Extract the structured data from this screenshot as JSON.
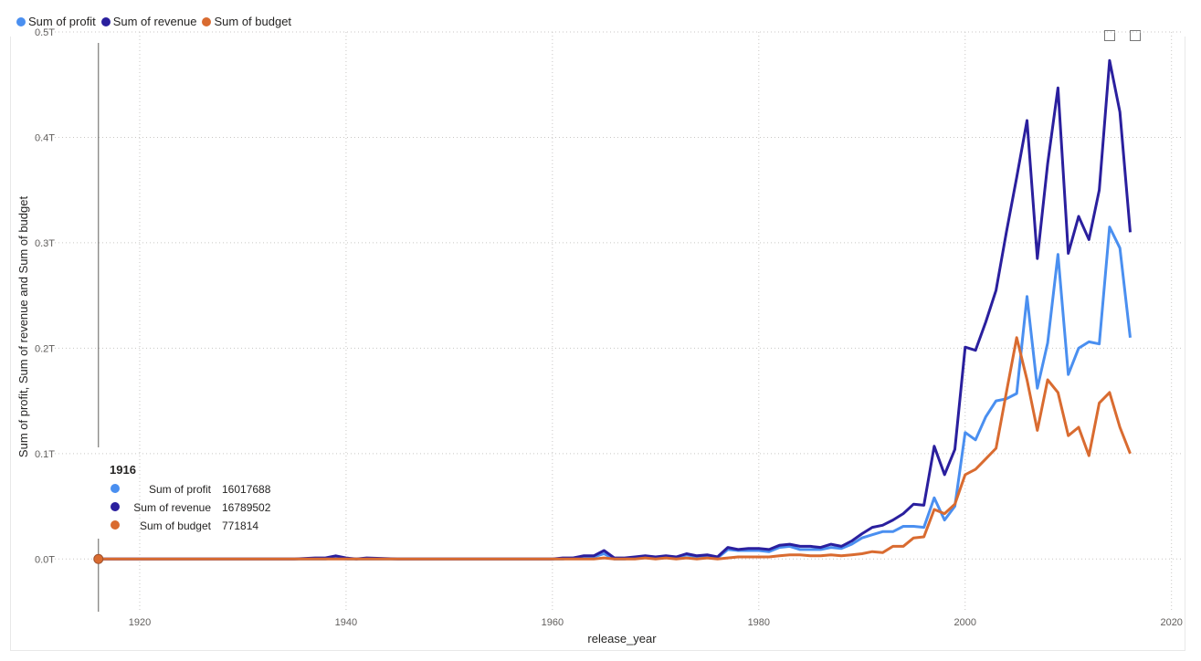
{
  "chart_data": {
    "type": "line",
    "title": "",
    "xlabel": "release_year",
    "ylabel": "Sum of profit, Sum of revenue and Sum of budget",
    "xlim": [
      1910,
      2021
    ],
    "ylim": [
      -0.05,
      0.5
    ],
    "x_ticks": [
      1920,
      1940,
      1960,
      1980,
      2000,
      2020
    ],
    "y_ticks": [
      {
        "value": 0,
        "label": "0.0T"
      },
      {
        "value": 0.1,
        "label": "0.1T"
      },
      {
        "value": 0.2,
        "label": "0.2T"
      },
      {
        "value": 0.3,
        "label": "0.3T"
      },
      {
        "value": 0.4,
        "label": "0.4T"
      },
      {
        "value": 0.5,
        "label": "0.5T"
      }
    ],
    "y_unit": "T",
    "grid": true,
    "legend_position": "top-left",
    "x": [
      1916,
      1920,
      1925,
      1930,
      1935,
      1937,
      1938,
      1939,
      1940,
      1941,
      1942,
      1945,
      1950,
      1955,
      1960,
      1961,
      1962,
      1963,
      1964,
      1965,
      1966,
      1967,
      1968,
      1969,
      1970,
      1971,
      1972,
      1973,
      1974,
      1975,
      1976,
      1977,
      1978,
      1979,
      1980,
      1981,
      1982,
      1983,
      1984,
      1985,
      1986,
      1987,
      1988,
      1989,
      1990,
      1991,
      1992,
      1993,
      1994,
      1995,
      1996,
      1997,
      1998,
      1999,
      2000,
      2001,
      2002,
      2003,
      2004,
      2005,
      2006,
      2007,
      2008,
      2009,
      2010,
      2011,
      2012,
      2013,
      2014,
      2015,
      2016
    ],
    "series": [
      {
        "name": "Sum of profit",
        "color": "#4a8ff0",
        "values": [
          0,
          0,
          0,
          0,
          0,
          0,
          0,
          0.001,
          0,
          0,
          0,
          0,
          0,
          0,
          0,
          0,
          0.001,
          0.002,
          0.002,
          0.005,
          0,
          0,
          0.001,
          0.002,
          0.001,
          0.002,
          0.001,
          0.004,
          0.002,
          0.003,
          0.001,
          0.009,
          0.008,
          0.008,
          0.008,
          0.007,
          0.011,
          0.012,
          0.009,
          0.009,
          0.009,
          0.011,
          0.01,
          0.014,
          0.02,
          0.023,
          0.026,
          0.026,
          0.031,
          0.031,
          0.03,
          0.058,
          0.037,
          0.05,
          0.12,
          0.113,
          0.135,
          0.15,
          0.152,
          0.157,
          0.249,
          0.162,
          0.205,
          0.289,
          0.175,
          0.2,
          0.206,
          0.204,
          0.315,
          0.295,
          0.21
        ]
      },
      {
        "name": "Sum of revenue",
        "color": "#2a1f9e",
        "values": [
          0,
          0,
          0,
          0,
          0,
          0.001,
          0.001,
          0.003,
          0.001,
          0,
          0.001,
          0,
          0,
          0,
          0,
          0.001,
          0.001,
          0.003,
          0.003,
          0.008,
          0.001,
          0.001,
          0.002,
          0.003,
          0.002,
          0.003,
          0.002,
          0.005,
          0.003,
          0.004,
          0.002,
          0.011,
          0.009,
          0.01,
          0.01,
          0.009,
          0.013,
          0.014,
          0.012,
          0.012,
          0.011,
          0.014,
          0.012,
          0.017,
          0.024,
          0.03,
          0.032,
          0.037,
          0.043,
          0.052,
          0.051,
          0.107,
          0.08,
          0.104,
          0.201,
          0.198,
          0.225,
          0.255,
          0.31,
          0.362,
          0.416,
          0.285,
          0.375,
          0.447,
          0.29,
          0.325,
          0.303,
          0.35,
          0.473,
          0.424,
          0.31
        ]
      },
      {
        "name": "Sum of budget",
        "color": "#d96b30",
        "values": [
          0,
          0,
          0,
          0,
          0,
          0,
          0,
          0,
          0,
          0,
          0,
          0,
          0,
          0,
          0,
          0,
          0,
          0,
          0,
          0.001,
          0,
          0,
          0,
          0.001,
          0,
          0.001,
          0,
          0.001,
          0,
          0.001,
          0,
          0.001,
          0.002,
          0.002,
          0.002,
          0.002,
          0.003,
          0.004,
          0.004,
          0.003,
          0.003,
          0.004,
          0.003,
          0.004,
          0.005,
          0.007,
          0.006,
          0.012,
          0.012,
          0.02,
          0.021,
          0.047,
          0.043,
          0.052,
          0.08,
          0.085,
          0.095,
          0.105,
          0.158,
          0.21,
          0.17,
          0.122,
          0.17,
          0.158,
          0.117,
          0.125,
          0.098,
          0.148,
          0.158,
          0.125,
          0.1
        ]
      }
    ],
    "tooltip": {
      "year": "1916",
      "rows": [
        {
          "label": "Sum of profit",
          "value": "16017688",
          "color": "#4a8ff0"
        },
        {
          "label": "Sum of revenue",
          "value": "16789502",
          "color": "#2a1f9e"
        },
        {
          "label": "Sum of budget",
          "value": "771814",
          "color": "#d96b30"
        }
      ]
    }
  }
}
